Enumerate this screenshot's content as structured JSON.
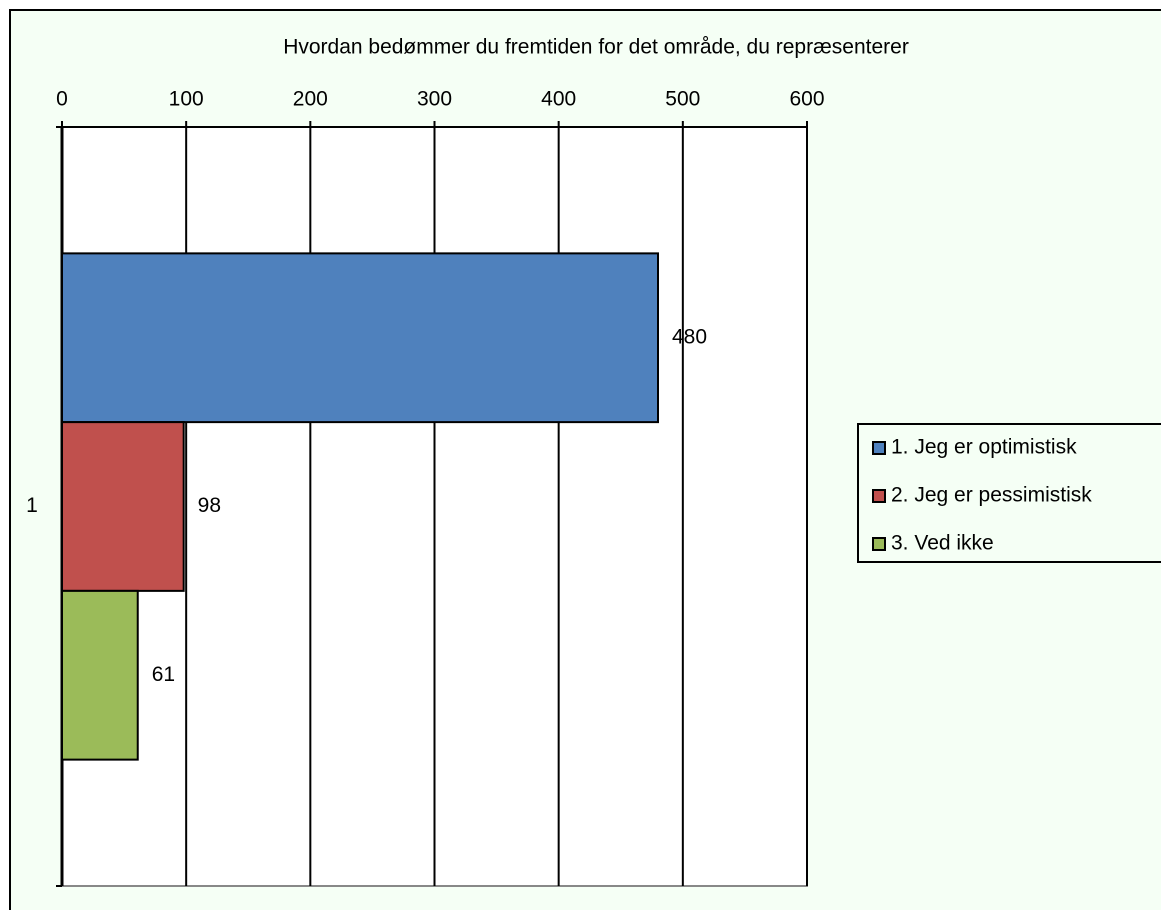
{
  "chart_data": {
    "type": "bar",
    "orientation": "horizontal",
    "title": "Hvordan bedømmer du fremtiden for det område, du repræsenterer",
    "categories": [
      "1"
    ],
    "series": [
      {
        "name": "1. Jeg er optimistisk",
        "color": "#4f81bd",
        "values": [
          480
        ]
      },
      {
        "name": "2. Jeg er pessimistisk",
        "color": "#c0504d",
        "values": [
          98
        ]
      },
      {
        "name": "3. Ved ikke",
        "color": "#9bbb59",
        "values": [
          61
        ]
      }
    ],
    "xlim": [
      0,
      600
    ],
    "xticks": [
      0,
      100,
      200,
      300,
      400,
      500,
      600
    ],
    "grid": true,
    "legend": "right"
  }
}
